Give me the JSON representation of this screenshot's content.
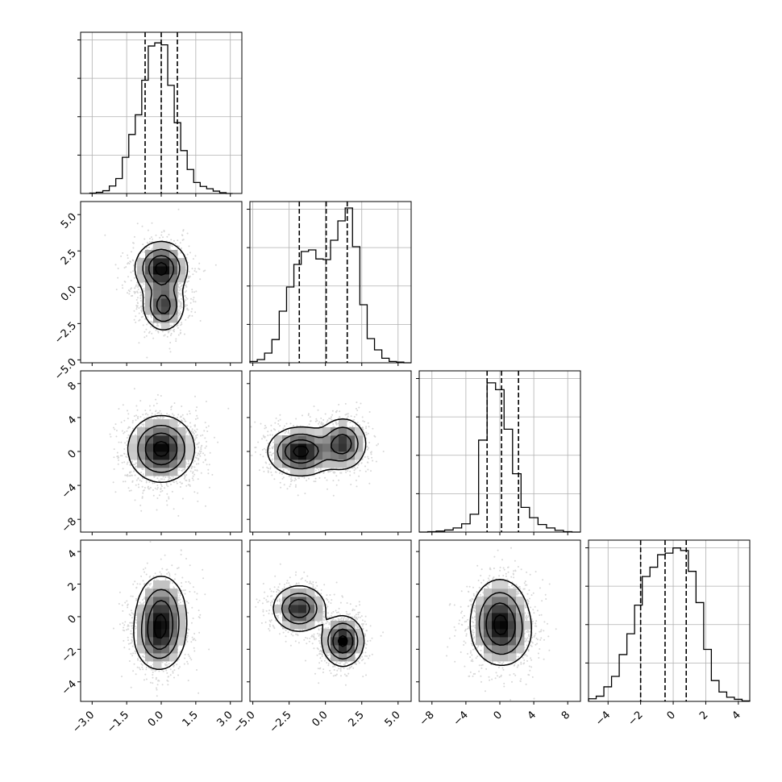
{
  "chart_data": {
    "type": "corner",
    "grid": true,
    "quantile_lines": "dashed",
    "parameters": [
      {
        "range": [
          -3.5,
          3.5
        ],
        "ticks": [
          -3.0,
          -1.5,
          0.0,
          1.5,
          3.0
        ],
        "tick_labels": [
          "−3.0",
          "−1.5",
          "0.0",
          "1.5",
          "3.0"
        ],
        "quantiles": [
          -0.7,
          0.0,
          0.7
        ],
        "histogram": {
          "bin_range": [
            -3.1,
            3.1
          ],
          "counts": [
            1,
            3,
            7,
            19,
            38,
            92,
            150,
            200,
            288,
            375,
            383,
            378,
            275,
            180,
            109,
            61,
            28,
            18,
            12,
            6,
            2,
            0
          ],
          "ylim": [
            0,
            410
          ]
        }
      },
      {
        "range": [
          -5.2,
          5.9
        ],
        "ticks": [
          -5.0,
          -2.5,
          0.0,
          2.5,
          5.0
        ],
        "tick_labels": [
          "−5.0",
          "−2.5",
          "0.0",
          "2.5",
          "5.0"
        ],
        "quantiles": [
          -1.8,
          0.05,
          1.5
        ],
        "histogram": {
          "bin_range": [
            -5.2,
            5.9
          ],
          "counts": [
            4,
            10,
            30,
            72,
            160,
            235,
            305,
            345,
            350,
            322,
            320,
            380,
            440,
            480,
            360,
            180,
            75,
            40,
            14,
            4,
            2,
            0
          ],
          "ylim": [
            0,
            500
          ]
        }
      },
      {
        "range": [
          -9.5,
          9.5
        ],
        "ticks": [
          -8,
          -4,
          0,
          4,
          8
        ],
        "tick_labels": [
          "−8",
          "−4",
          "0",
          "4",
          "8"
        ],
        "quantiles": [
          -1.5,
          0.2,
          2.2
        ],
        "histogram": {
          "bin_range": [
            -9.5,
            9.5
          ],
          "counts": [
            0,
            1,
            3,
            6,
            12,
            24,
            52,
            268,
            435,
            415,
            300,
            170,
            72,
            42,
            22,
            12,
            5,
            1,
            0
          ],
          "ylim": [
            0,
            470
          ]
        }
      },
      {
        "range": [
          -5.2,
          4.7
        ],
        "ticks": [
          -4,
          -2,
          0,
          2,
          4
        ],
        "tick_labels": [
          "−4",
          "−2",
          "0",
          "2",
          "4"
        ],
        "quantiles": [
          -2.0,
          -0.5,
          0.8
        ],
        "histogram": {
          "bin_range": [
            -5.2,
            4.7
          ],
          "counts": [
            5,
            10,
            28,
            48,
            90,
            130,
            185,
            240,
            258,
            282,
            285,
            295,
            290,
            250,
            190,
            100,
            40,
            18,
            8,
            4,
            1
          ],
          "ylim": [
            0,
            310
          ]
        }
      }
    ],
    "pairs": [
      {
        "row": 1,
        "col": 0,
        "modes": [
          {
            "x": 0.0,
            "y": 1.3,
            "sx": 0.55,
            "sy": 0.9,
            "w": 1.0
          },
          {
            "x": 0.1,
            "y": -1.3,
            "sx": 0.45,
            "sy": 0.85,
            "w": 0.75
          }
        ]
      },
      {
        "row": 2,
        "col": 0,
        "modes": [
          {
            "x": 0.0,
            "y": 0.3,
            "sx": 0.7,
            "sy": 1.9,
            "w": 1.0
          }
        ]
      },
      {
        "row": 2,
        "col": 1,
        "modes": [
          {
            "x": -1.7,
            "y": 0.0,
            "sx": 1.1,
            "sy": 1.4,
            "w": 1.0
          },
          {
            "x": 1.2,
            "y": 0.9,
            "sx": 0.8,
            "sy": 1.5,
            "w": 0.8
          }
        ]
      },
      {
        "row": 3,
        "col": 0,
        "modes": [
          {
            "x": 0.0,
            "y": 0.2,
            "sx": 0.55,
            "sy": 1.2,
            "w": 1.0
          },
          {
            "x": -0.1,
            "y": -1.4,
            "sx": 0.55,
            "sy": 1.0,
            "w": 0.8
          }
        ]
      },
      {
        "row": 3,
        "col": 1,
        "modes": [
          {
            "x": -1.8,
            "y": 0.5,
            "sx": 0.9,
            "sy": 0.7,
            "w": 0.85
          },
          {
            "x": 1.2,
            "y": -1.5,
            "sx": 0.7,
            "sy": 0.75,
            "w": 1.0
          }
        ]
      },
      {
        "row": 3,
        "col": 2,
        "modes": [
          {
            "x": 0.0,
            "y": 0.0,
            "sx": 1.7,
            "sy": 1.2,
            "w": 1.0
          },
          {
            "x": 0.3,
            "y": -1.2,
            "sx": 1.8,
            "sy": 1.0,
            "w": 0.6
          }
        ]
      }
    ]
  }
}
